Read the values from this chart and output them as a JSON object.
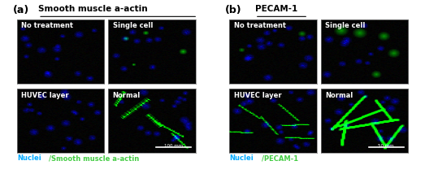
{
  "panel_a_title": "Smooth muscle a-actin",
  "panel_b_title": "PECAM-1",
  "label_a": "(a)",
  "label_b": "(b)",
  "panel_a_labels": [
    "No treatment",
    "Single cell",
    "HUVEC layer",
    "Normal"
  ],
  "panel_b_labels": [
    "No treatment",
    "Single cell",
    "HUVEC layer",
    "Normal"
  ],
  "scalebar_a": "100 mm",
  "scalebar_b": "50 mm",
  "bg_color": "#ffffff",
  "caption_nuclei_color": "#00aaff",
  "caption_marker_color_a": "#44cc44",
  "caption_marker_color_b": "#44cc44",
  "caption_nuclei": "Nuclei",
  "caption_rest_a": "/Smooth muscle a-actin",
  "caption_rest_b": "/PECAM-1"
}
